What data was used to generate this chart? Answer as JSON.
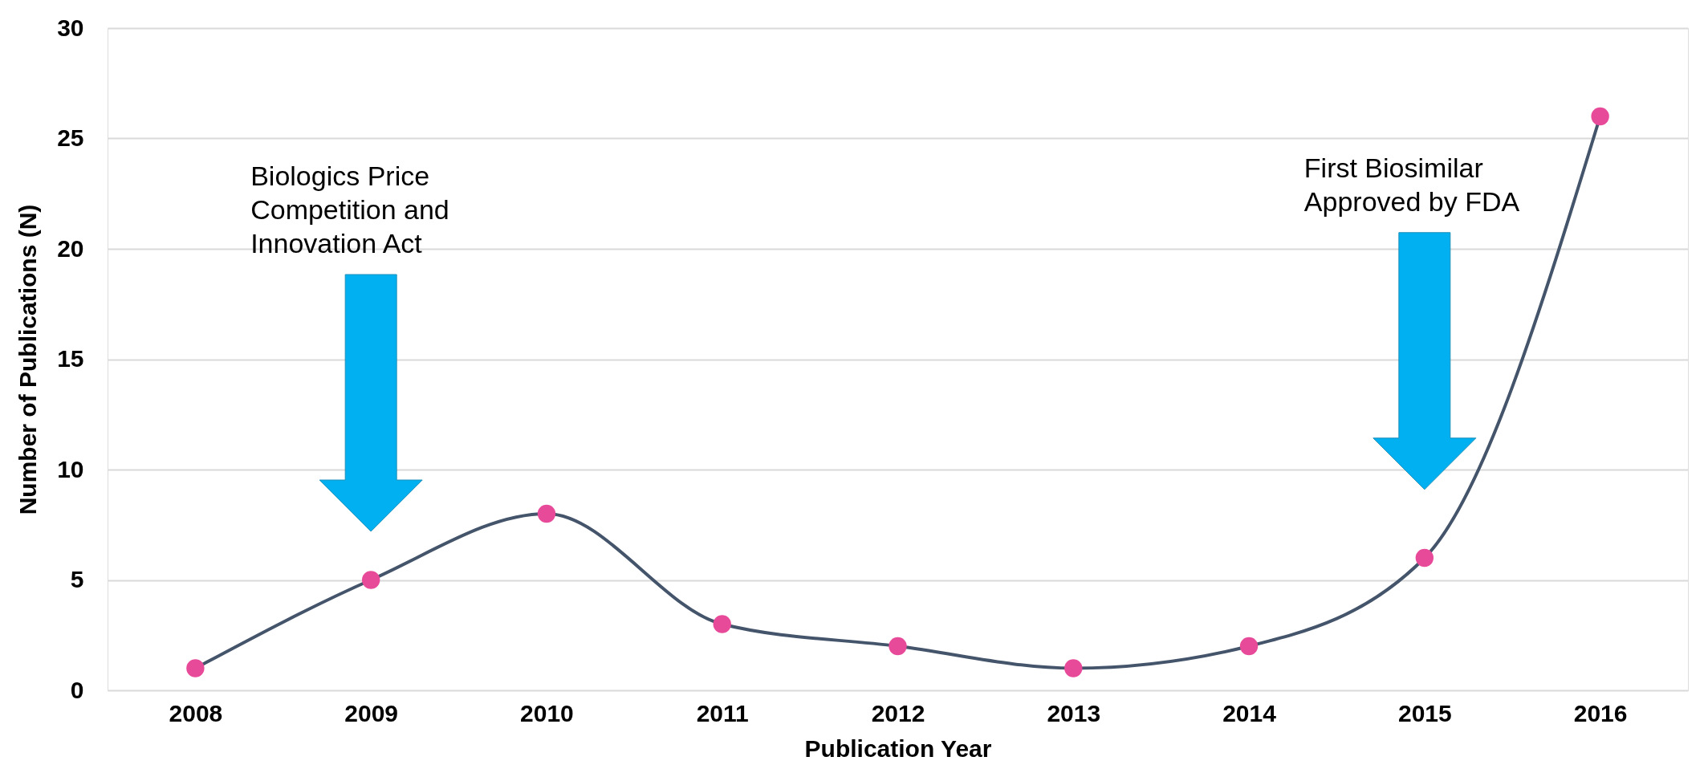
{
  "chart_data": {
    "type": "line",
    "xlabel": "Publication Year",
    "ylabel": "Number of Publications (N)",
    "categories": [
      "2008",
      "2009",
      "2010",
      "2011",
      "2012",
      "2013",
      "2014",
      "2015",
      "2016"
    ],
    "series": [
      {
        "color": "#44546a",
        "values": [
          1,
          5,
          8,
          3,
          2,
          1,
          2,
          6,
          26
        ]
      }
    ],
    "marker": "circle",
    "ylim": [
      0,
      30
    ],
    "yticks": [
      0,
      5,
      10,
      15,
      20,
      25,
      30
    ],
    "grid": "y",
    "annotations": [
      "Biologics Price\nCompetition and\nInnovation Act",
      "First Biosimilar\nApproved by FDA"
    ]
  }
}
